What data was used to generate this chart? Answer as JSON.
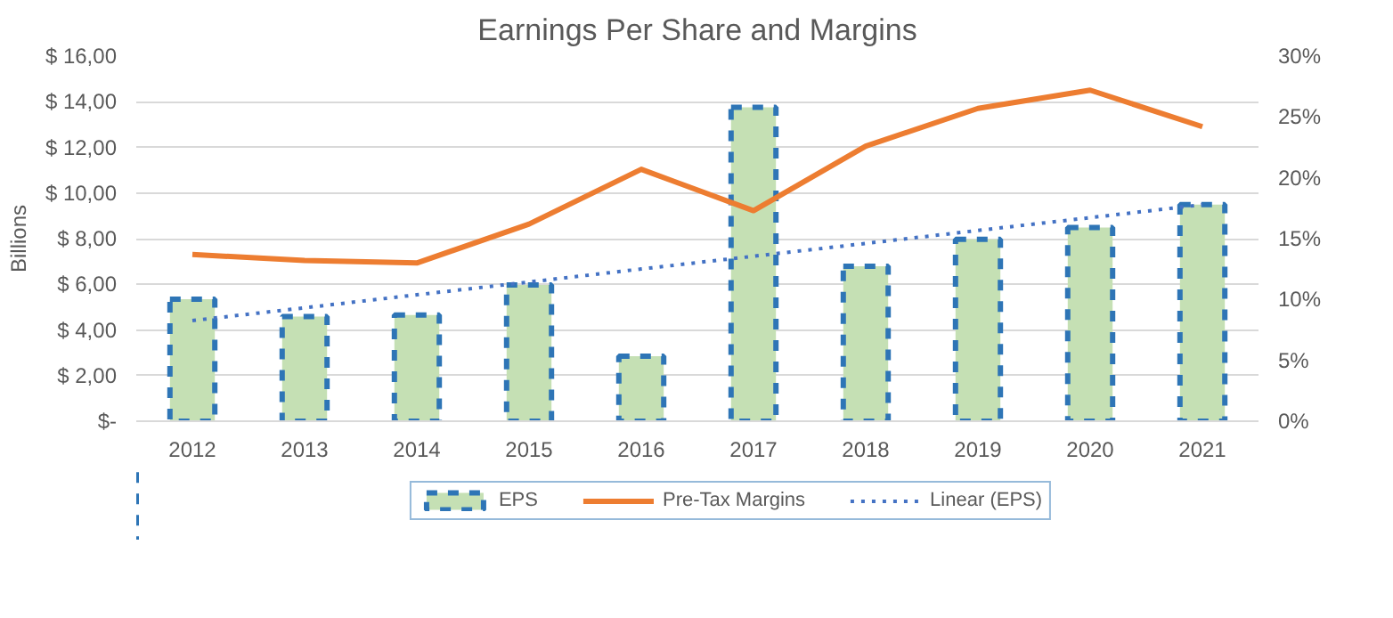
{
  "chart_data": {
    "type": "bar",
    "title": "Earnings Per Share and Margins",
    "ylabel": "Billions",
    "categories": [
      "2012",
      "2013",
      "2014",
      "2015",
      "2016",
      "2017",
      "2018",
      "2019",
      "2020",
      "2021"
    ],
    "series": [
      {
        "name": "EPS",
        "color": "#c5e0b4",
        "line_style": "dashed",
        "values": [
          5.35,
          4.59,
          4.65,
          5.97,
          2.85,
          13.76,
          6.79,
          7.97,
          8.49,
          9.49
        ]
      },
      {
        "name": "Pre-Tax Margins",
        "type": "line",
        "axis": "y2",
        "color": "#ed7d31",
        "line_style": "solid",
        "values": [
          13.7,
          13.2,
          13.0,
          16.2,
          20.7,
          17.3,
          22.6,
          25.7,
          27.2,
          24.2
        ]
      },
      {
        "name": "Linear (EPS)",
        "type": "line",
        "color": "#4472c4",
        "line_style": "dotted",
        "values": [
          4.41,
          4.97,
          5.54,
          6.1,
          6.67,
          7.23,
          7.79,
          8.36,
          8.92,
          9.49
        ]
      }
    ],
    "ylim": [
      0,
      16
    ],
    "yticks": [
      {
        "value": 0,
        "label": "$-"
      },
      {
        "value": 2,
        "label": "$ 2,00"
      },
      {
        "value": 4,
        "label": "$ 4,00"
      },
      {
        "value": 6,
        "label": "$ 6,00"
      },
      {
        "value": 8,
        "label": "$ 8,00"
      },
      {
        "value": 10,
        "label": "$ 10,00"
      },
      {
        "value": 12,
        "label": "$ 12,00"
      },
      {
        "value": 14,
        "label": "$ 14,00"
      },
      {
        "value": 16,
        "label": "$ 16,00"
      }
    ],
    "y2lim": [
      0,
      30
    ],
    "y2ticks": [
      {
        "value": 0,
        "label": "0%"
      },
      {
        "value": 5,
        "label": "5%"
      },
      {
        "value": 10,
        "label": "10%"
      },
      {
        "value": 15,
        "label": "15%"
      },
      {
        "value": 20,
        "label": "20%"
      },
      {
        "value": 25,
        "label": "25%"
      },
      {
        "value": 30,
        "label": "30%"
      }
    ],
    "grid": "y",
    "legend": "bottom"
  }
}
